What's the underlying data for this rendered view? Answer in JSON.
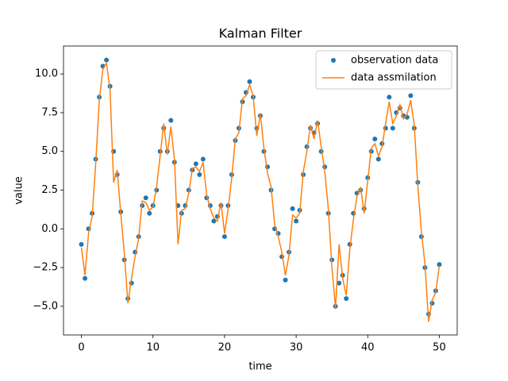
{
  "chart_data": {
    "type": "line",
    "title": "Kalman Filter",
    "xlabel": "time",
    "ylabel": "value",
    "x": [
      0,
      0.5,
      1,
      1.5,
      2,
      2.5,
      3,
      3.5,
      4,
      4.5,
      5,
      5.5,
      6,
      6.5,
      7,
      7.5,
      8,
      8.5,
      9,
      9.5,
      10,
      10.5,
      11,
      11.5,
      12,
      12.5,
      13,
      13.5,
      14,
      14.5,
      15,
      15.5,
      16,
      16.5,
      17,
      17.5,
      18,
      18.5,
      19,
      19.5,
      20,
      20.5,
      21,
      21.5,
      22,
      22.5,
      23,
      23.5,
      24,
      24.5,
      25,
      25.5,
      26,
      26.5,
      27,
      27.5,
      28,
      28.5,
      29,
      29.5,
      30,
      30.5,
      31,
      31.5,
      32,
      32.5,
      33,
      33.5,
      34,
      34.5,
      35,
      35.5,
      36,
      36.5,
      37,
      37.5,
      38,
      38.5,
      39,
      39.5,
      40,
      40.5,
      41,
      41.5,
      42,
      42.5,
      43,
      43.5,
      44,
      44.5,
      45,
      45.5,
      46,
      46.5,
      47,
      47.5,
      48,
      48.5,
      49,
      49.5,
      50
    ],
    "series": [
      {
        "name": "observation data",
        "color": "#1f77b4",
        "marker": "dot",
        "values": [
          -1.0,
          -3.2,
          0,
          1.0,
          4.5,
          8.5,
          10.5,
          10.9,
          9.2,
          5.0,
          3.5,
          1.1,
          -2.0,
          -4.5,
          -3.5,
          -1.5,
          -0.5,
          1.5,
          2.0,
          1.0,
          1.5,
          2.5,
          5.0,
          6.5,
          5.0,
          7.0,
          4.3,
          1.5,
          1.0,
          1.5,
          2.5,
          3.8,
          4.2,
          3.5,
          4.5,
          2.0,
          1.5,
          0.5,
          0.8,
          1.5,
          -0.5,
          1.5,
          3.5,
          5.7,
          6.5,
          8.2,
          8.8,
          9.5,
          8.5,
          6.5,
          7.3,
          5.0,
          4.0,
          2.5,
          0,
          -0.3,
          -1.8,
          -3.3,
          -1.5,
          1.3,
          0.5,
          1.2,
          3.5,
          5.3,
          6.5,
          6.2,
          6.8,
          5.0,
          4.0,
          1.0,
          -2.0,
          -5.0,
          -3.5,
          -3.0,
          -4.5,
          -1.0,
          1.0,
          2.3,
          2.5,
          1.3,
          3.3,
          5.0,
          5.8,
          4.5,
          5.5,
          6.5,
          8.5,
          6.5,
          7.5,
          7.8,
          7.3,
          7.2,
          8.6,
          6.5,
          3.0,
          -0.5,
          -2.5,
          -5.5,
          -4.8,
          -4.0,
          -2.3
        ]
      },
      {
        "name": "data assmilation",
        "color": "#ff7f0e",
        "marker": "line",
        "values": [
          -1.2,
          -3.0,
          -0.3,
          0.8,
          4.2,
          8.3,
          10.3,
          10.7,
          9.0,
          3.0,
          3.8,
          1.0,
          -1.6,
          -4.8,
          -3.2,
          -1.8,
          -0.6,
          1.8,
          1.7,
          1.2,
          1.4,
          2.7,
          4.7,
          6.8,
          4.8,
          6.6,
          4.5,
          -1.0,
          1.2,
          1.3,
          2.3,
          3.9,
          4.0,
          3.7,
          4.3,
          2.2,
          1.3,
          0.7,
          0.5,
          1.7,
          -0.3,
          1.3,
          3.3,
          5.8,
          6.2,
          8.4,
          8.6,
          9.3,
          8.6,
          6.0,
          7.4,
          5.2,
          3.6,
          2.7,
          0.3,
          -0.5,
          -1.5,
          -3.0,
          -1.7,
          0.9,
          0.7,
          1.0,
          3.7,
          5.0,
          6.7,
          5.8,
          7.0,
          5.3,
          3.7,
          1.3,
          -2.5,
          -5.1,
          -1.0,
          -3.2,
          -4.3,
          -1.3,
          0.6,
          2.1,
          2.7,
          1.0,
          3.1,
          5.2,
          5.5,
          4.7,
          5.3,
          6.8,
          8.2,
          6.8,
          7.3,
          8.0,
          7.1,
          7.4,
          8.3,
          6.7,
          2.8,
          -0.2,
          -2.3,
          -6.0,
          -4.6,
          -4.1,
          -2.4
        ]
      }
    ],
    "xlim": [
      -2.5,
      52.5
    ],
    "ylim": [
      -6.85,
      11.8
    ],
    "xticks": [
      0,
      10,
      20,
      30,
      40,
      50
    ],
    "yticks": [
      {
        "value": -5,
        "label": "−5.0"
      },
      {
        "value": -2.5,
        "label": "−2.5"
      },
      {
        "value": 0,
        "label": "0.0"
      },
      2.5,
      {
        "value": 5,
        "label": "5.0"
      },
      7.5,
      {
        "value": 10,
        "label": "10.0"
      }
    ],
    "legend": "upper right"
  }
}
